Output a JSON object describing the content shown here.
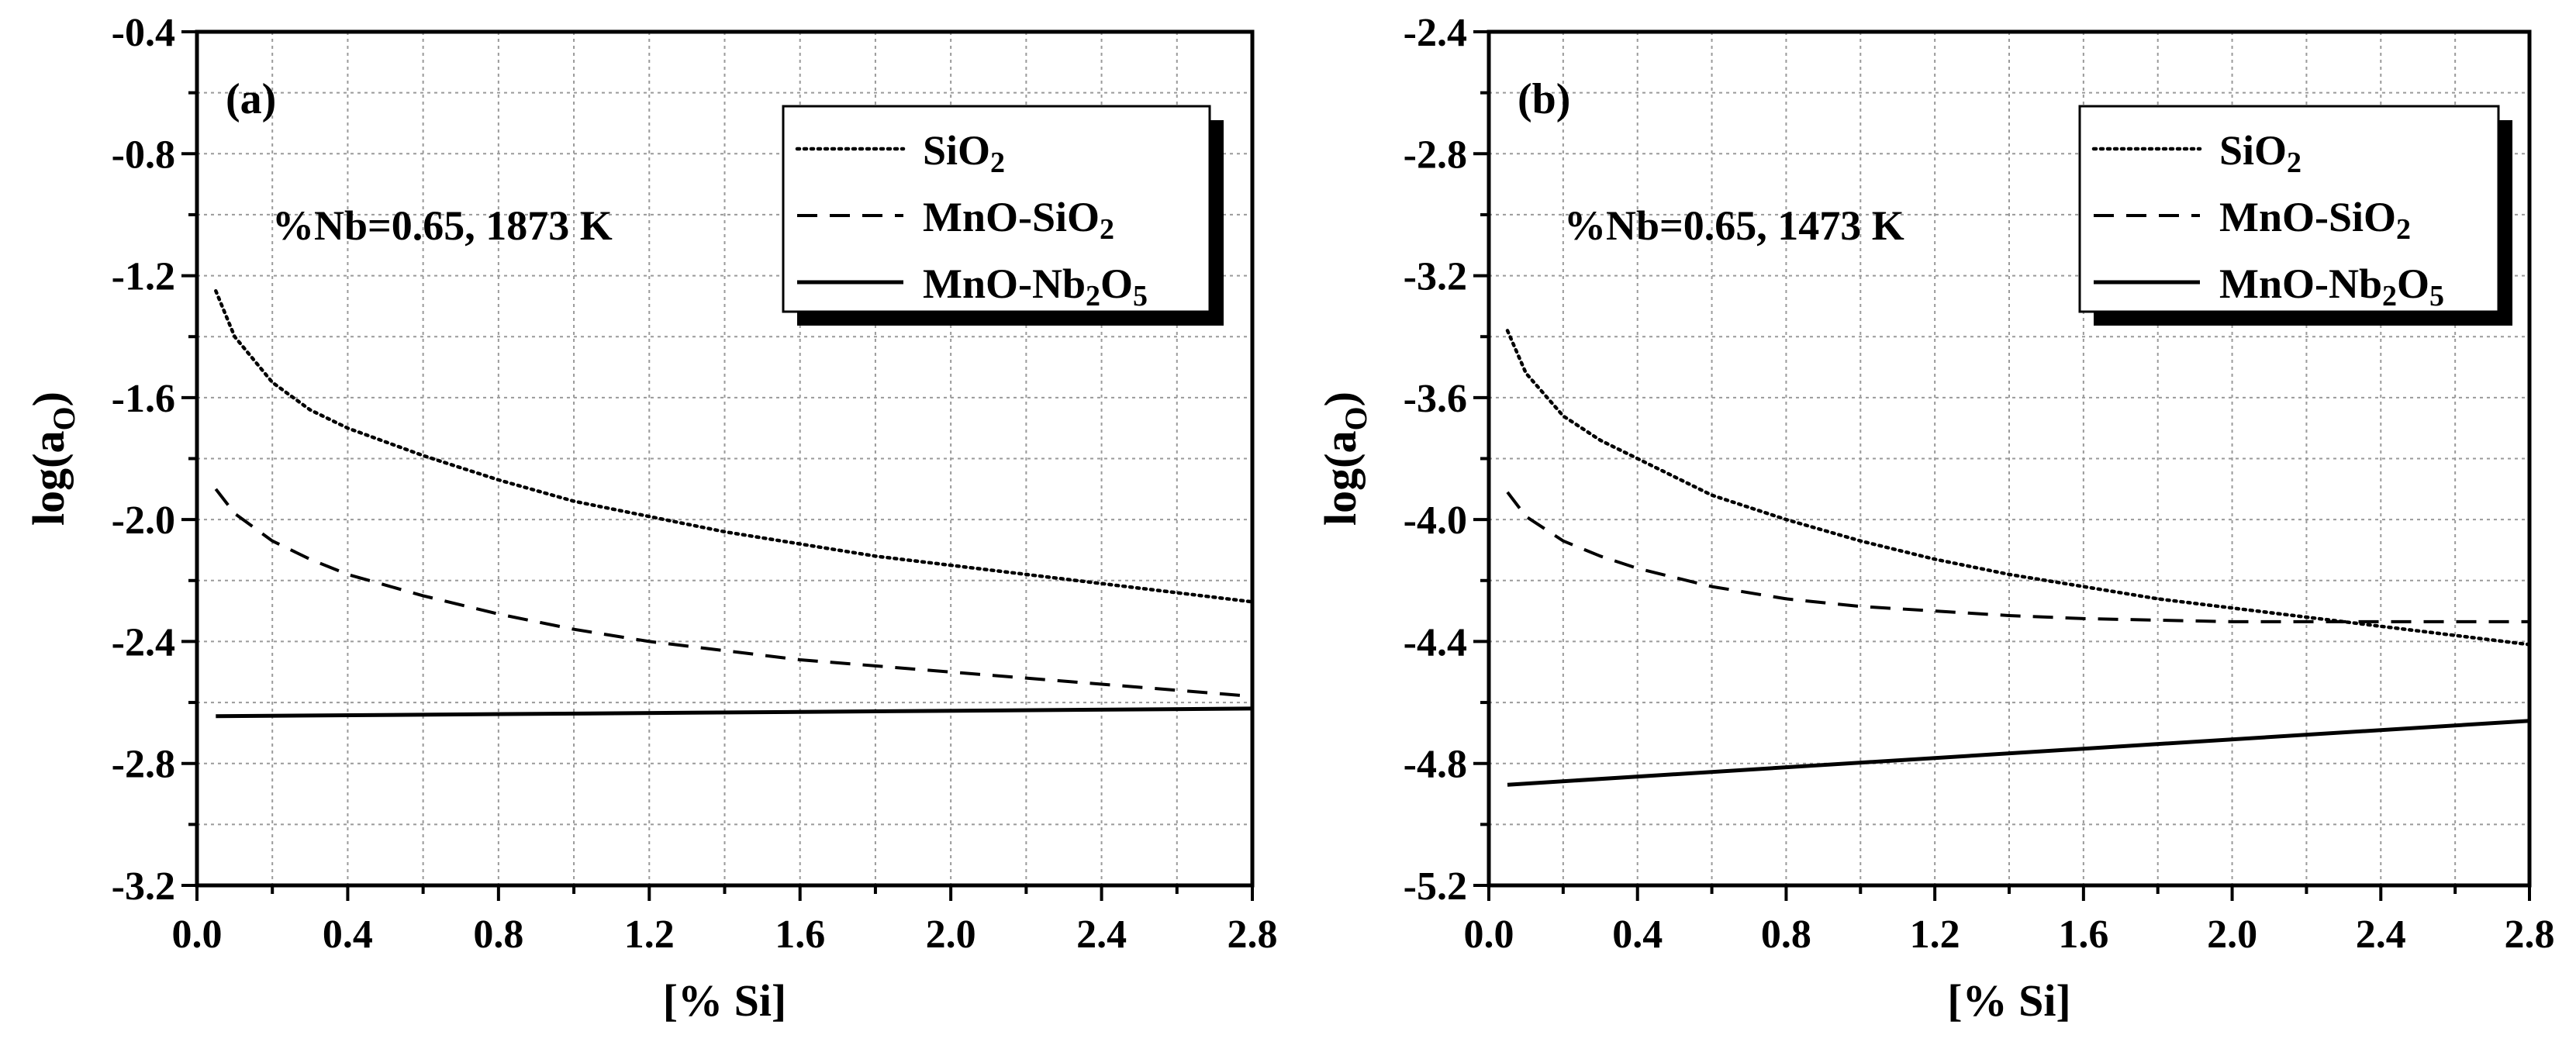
{
  "chart_data": [
    {
      "type": "line",
      "panel_label": "(a)",
      "annotation": "%Nb=0.65, 1873 K",
      "xlabel": "[% Si]",
      "ylabel": "log(a",
      "ylabel_sub": "O",
      "ylabel_close": ")",
      "xlim": [
        0.0,
        2.8
      ],
      "ylim": [
        -3.2,
        -0.4
      ],
      "x_ticks": [
        0.0,
        0.4,
        0.8,
        1.2,
        1.6,
        2.0,
        2.4,
        2.8
      ],
      "x_tick_labels": [
        "0.0",
        "0.4",
        "0.8",
        "1.2",
        "1.6",
        "2.0",
        "2.4",
        "2.8"
      ],
      "y_ticks": [
        -3.2,
        -2.8,
        -2.4,
        -2.0,
        -1.6,
        -1.2,
        -0.8,
        -0.4
      ],
      "y_tick_labels": [
        "-3.2",
        "-2.8",
        "-2.4",
        "-2.0",
        "-1.6",
        "-1.2",
        "-0.8",
        "-0.4"
      ],
      "grid": true,
      "legend_position": "top-right",
      "series": [
        {
          "name": "SiO2",
          "label_main": "SiO",
          "label_sub": "2",
          "label_tail": "",
          "style": "dotted",
          "x": [
            0.05,
            0.1,
            0.2,
            0.3,
            0.4,
            0.6,
            0.8,
            1.0,
            1.2,
            1.4,
            1.6,
            1.8,
            2.0,
            2.2,
            2.4,
            2.6,
            2.8
          ],
          "y": [
            -1.25,
            -1.4,
            -1.55,
            -1.64,
            -1.7,
            -1.79,
            -1.87,
            -1.94,
            -1.99,
            -2.04,
            -2.08,
            -2.12,
            -2.15,
            -2.18,
            -2.21,
            -2.24,
            -2.27
          ]
        },
        {
          "name": "MnO-SiO2",
          "label_main": "MnO-SiO",
          "label_sub": "2",
          "label_tail": "",
          "style": "dashed",
          "x": [
            0.05,
            0.1,
            0.2,
            0.3,
            0.4,
            0.6,
            0.8,
            1.0,
            1.2,
            1.4,
            1.6,
            1.8,
            2.0,
            2.2,
            2.4,
            2.6,
            2.8
          ],
          "y": [
            -1.9,
            -1.98,
            -2.07,
            -2.13,
            -2.18,
            -2.25,
            -2.31,
            -2.36,
            -2.4,
            -2.43,
            -2.46,
            -2.48,
            -2.5,
            -2.52,
            -2.54,
            -2.56,
            -2.58
          ]
        },
        {
          "name": "MnO-Nb2O5",
          "label_main": "MnO-Nb",
          "label_sub": "2",
          "label_tail": "O",
          "label_sub2": "5",
          "style": "solid",
          "x": [
            0.05,
            2.8
          ],
          "y": [
            -2.645,
            -2.62
          ]
        }
      ]
    },
    {
      "type": "line",
      "panel_label": "(b)",
      "annotation": "%Nb=0.65, 1473 K",
      "xlabel": "[% Si]",
      "ylabel": "log(a",
      "ylabel_sub": "O",
      "ylabel_close": ")",
      "xlim": [
        0.0,
        2.8
      ],
      "ylim": [
        -5.2,
        -2.4
      ],
      "x_ticks": [
        0.0,
        0.4,
        0.8,
        1.2,
        1.6,
        2.0,
        2.4,
        2.8
      ],
      "x_tick_labels": [
        "0.0",
        "0.4",
        "0.8",
        "1.2",
        "1.6",
        "2.0",
        "2.4",
        "2.8"
      ],
      "y_ticks": [
        -5.2,
        -4.8,
        -4.4,
        -4.0,
        -3.6,
        -3.2,
        -2.8,
        -2.4
      ],
      "y_tick_labels": [
        "-5.2",
        "-4.8",
        "-4.4",
        "-4.0",
        "-3.6",
        "-3.2",
        "-2.8",
        "-2.4"
      ],
      "grid": true,
      "legend_position": "top-right",
      "series": [
        {
          "name": "SiO2",
          "label_main": "SiO",
          "label_sub": "2",
          "label_tail": "",
          "style": "dotted",
          "x": [
            0.05,
            0.1,
            0.2,
            0.3,
            0.4,
            0.6,
            0.8,
            1.0,
            1.2,
            1.4,
            1.6,
            1.8,
            2.0,
            2.2,
            2.4,
            2.6,
            2.8
          ],
          "y": [
            -3.38,
            -3.52,
            -3.66,
            -3.74,
            -3.8,
            -3.92,
            -4.0,
            -4.07,
            -4.13,
            -4.18,
            -4.22,
            -4.26,
            -4.29,
            -4.32,
            -4.35,
            -4.38,
            -4.41
          ]
        },
        {
          "name": "MnO-SiO2",
          "label_main": "MnO-SiO",
          "label_sub": "2",
          "label_tail": "",
          "style": "dashed",
          "x": [
            0.05,
            0.1,
            0.2,
            0.3,
            0.4,
            0.6,
            0.8,
            1.0,
            1.2,
            1.4,
            1.6,
            1.8,
            2.0,
            2.2,
            2.4,
            2.6,
            2.8
          ],
          "y": [
            -3.91,
            -3.99,
            -4.07,
            -4.12,
            -4.16,
            -4.22,
            -4.26,
            -4.285,
            -4.3,
            -4.315,
            -4.325,
            -4.33,
            -4.335,
            -4.335,
            -4.335,
            -4.335,
            -4.335
          ]
        },
        {
          "name": "MnO-Nb2O5",
          "label_main": "MnO-Nb",
          "label_sub": "2",
          "label_tail": "O",
          "label_sub2": "5",
          "style": "solid",
          "x": [
            0.05,
            2.8
          ],
          "y": [
            -4.87,
            -4.66
          ]
        }
      ]
    }
  ]
}
